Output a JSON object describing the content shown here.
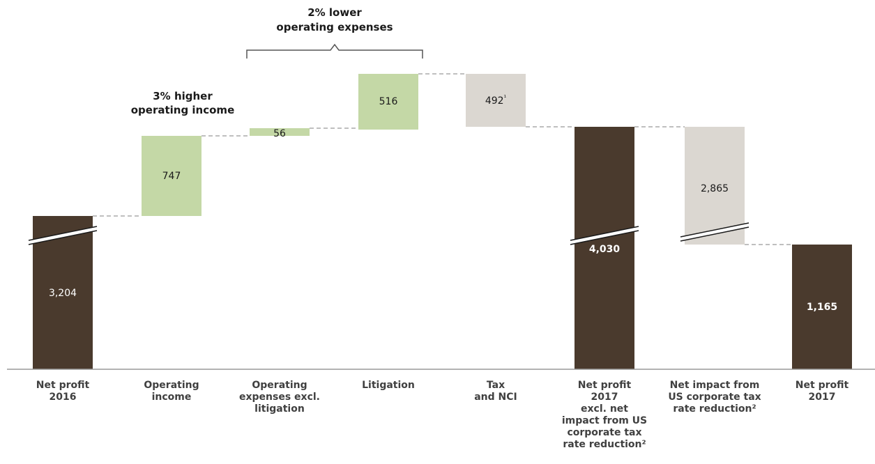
{
  "chart_data": {
    "type": "waterfall",
    "categories": [
      [
        "Net profit",
        "2016"
      ],
      [
        "Operating",
        "income"
      ],
      [
        "Operating",
        "expenses excl.",
        "litigation"
      ],
      [
        "Litigation"
      ],
      [
        "Tax",
        "and NCI"
      ],
      [
        "Net profit",
        "2017",
        "excl. net",
        "impact from US",
        "corporate tax",
        "rate reduction²"
      ],
      [
        "Net impact from",
        "US corporate tax",
        "rate reduction²"
      ],
      [
        "Net profit",
        "2017"
      ]
    ],
    "values": [
      3204,
      747,
      56,
      516,
      -492,
      4030,
      -2865,
      1165
    ],
    "value_labels": [
      "3,204",
      "747",
      "56",
      "516",
      "492¹",
      "4,030",
      "2,865",
      "1,165"
    ],
    "bar_kinds": [
      "total",
      "increase",
      "increase",
      "increase",
      "decrease",
      "total",
      "decrease",
      "total"
    ],
    "axis_break": [
      0,
      5,
      6
    ],
    "annotations": [
      {
        "lines": [
          "3% higher",
          "operating income"
        ],
        "spans": [
          1,
          1
        ]
      },
      {
        "lines": [
          "2% lower",
          "operating expenses"
        ],
        "spans": [
          2,
          3
        ]
      }
    ],
    "colors": {
      "total": "#4a3a2d",
      "increase": "#c4d8a6",
      "decrease": "#dbd7d1",
      "connector": "#999999",
      "axis": "#999999",
      "label_dark": "#1a1a1a",
      "label_light": "#ffffff"
    }
  }
}
